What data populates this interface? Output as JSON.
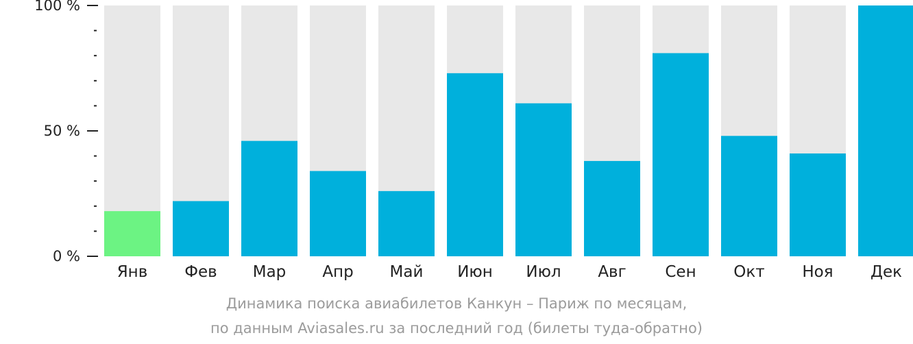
{
  "chart_data": {
    "type": "bar",
    "categories": [
      "Янв",
      "Фев",
      "Мар",
      "Апр",
      "Май",
      "Июн",
      "Июл",
      "Авг",
      "Сен",
      "Окт",
      "Ноя",
      "Дек"
    ],
    "values": [
      18,
      22,
      46,
      34,
      26,
      73,
      61,
      38,
      81,
      48,
      41,
      100
    ],
    "ylim": [
      0,
      100
    ],
    "yticks": [
      {
        "value": 0,
        "label": "0 %"
      },
      {
        "value": 50,
        "label": "50 %"
      },
      {
        "value": 100,
        "label": "100 %"
      }
    ],
    "minor_tick_step": 10,
    "highlight_index": 0,
    "colors": {
      "bar": "#00b0dc",
      "highlight": "#6cf383",
      "track": "#e8e8e8",
      "axis": "#222222",
      "text": "#222222"
    },
    "caption": {
      "line1": "Динамика поиска авиабилетов Канкун – Париж по месяцам,",
      "line2": "по данным Aviasales.ru за последний год (билеты туда-обратно)"
    }
  }
}
